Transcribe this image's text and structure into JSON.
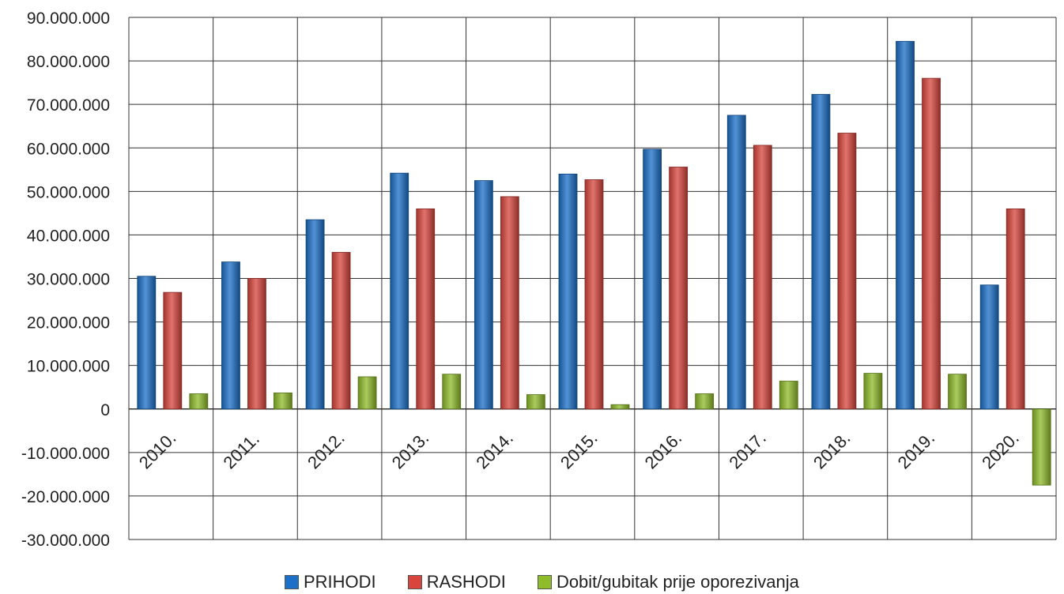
{
  "chart_data": {
    "type": "bar",
    "categories": [
      "2010.",
      "2011.",
      "2012.",
      "2013.",
      "2014.",
      "2015.",
      "2016.",
      "2017.",
      "2018.",
      "2019.",
      "2020."
    ],
    "series": [
      {
        "name": "PRIHODI",
        "color": "#1c70c8",
        "values": [
          30500000,
          33800000,
          43500000,
          54200000,
          52500000,
          54000000,
          59700000,
          67500000,
          72300000,
          84500000,
          28500000
        ]
      },
      {
        "name": "RASHODI",
        "color": "#d9453d",
        "values": [
          26800000,
          30000000,
          36000000,
          46000000,
          48800000,
          52700000,
          55600000,
          60600000,
          63400000,
          76000000,
          46000000
        ]
      },
      {
        "name": "Dobit/gubitak prije oporezivanja",
        "color": "#8fbc2b",
        "values": [
          3500000,
          3700000,
          7400000,
          8000000,
          3300000,
          1000000,
          3500000,
          6400000,
          8200000,
          8000000,
          -17500000
        ]
      }
    ],
    "ylim": [
      -30000000,
      90000000
    ],
    "yticks": [
      90000000,
      80000000,
      70000000,
      60000000,
      50000000,
      40000000,
      30000000,
      20000000,
      10000000,
      0,
      -10000000,
      -20000000,
      -30000000
    ],
    "ytick_labels": [
      "90.000.000",
      "80.000.000",
      "70.000.000",
      "60.000.000",
      "50.000.000",
      "40.000.000",
      "30.000.000",
      "20.000.000",
      "10.000.000",
      "0",
      "-10.000.000",
      "-20.000.000",
      "-30.000.000"
    ],
    "grid": true,
    "legend_position": "bottom"
  }
}
